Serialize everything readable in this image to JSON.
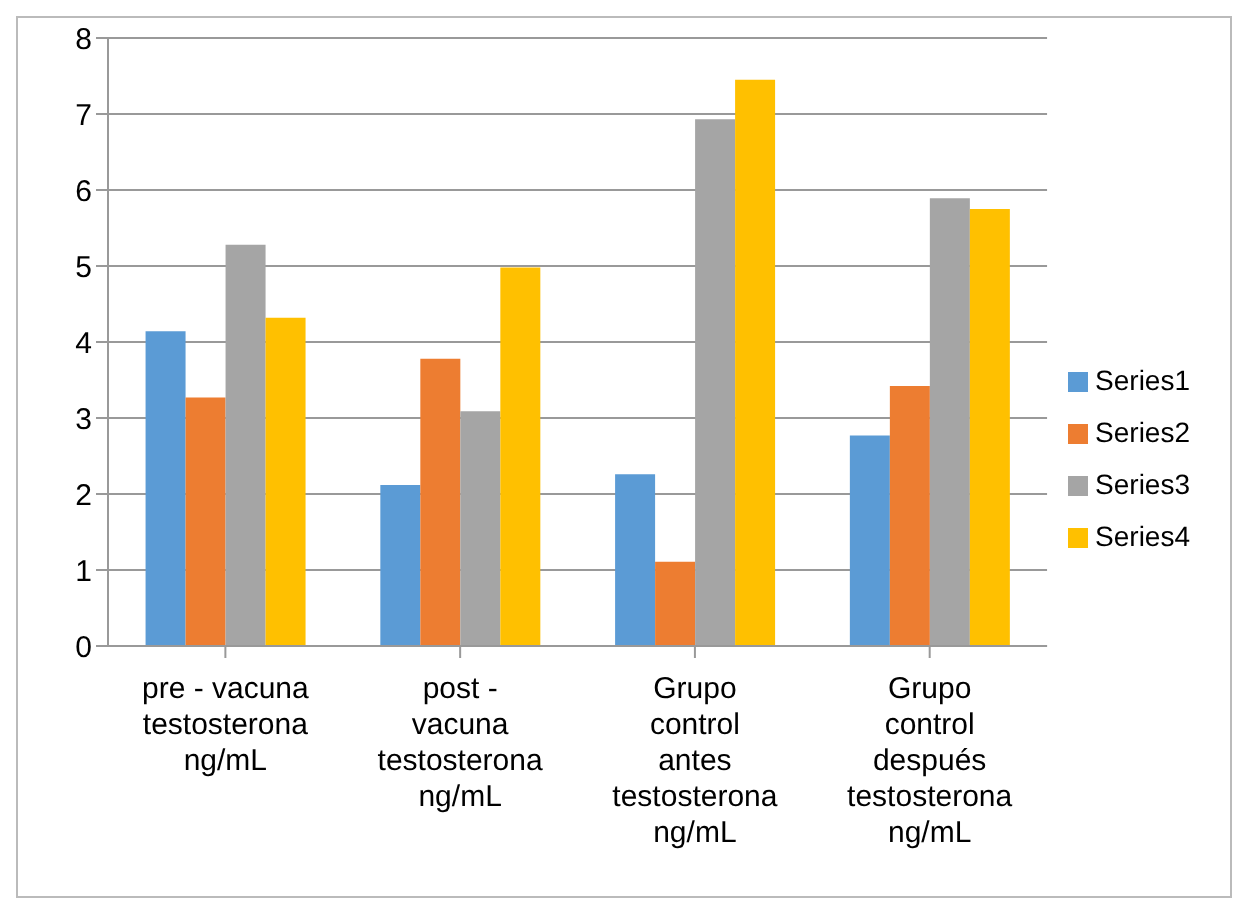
{
  "chart_data": {
    "type": "bar",
    "categories": [
      "pre - vacuna testosterona ng/mL",
      "post - vacuna testosterona ng/mL",
      "Grupo control antes testosterona ng/mL",
      "Grupo control después testosterona ng/mL"
    ],
    "series": [
      {
        "name": "Series1",
        "color": "#5b9bd5",
        "values": [
          4.14,
          2.12,
          2.26,
          2.77
        ]
      },
      {
        "name": "Series2",
        "color": "#ed7d31",
        "values": [
          3.27,
          3.78,
          1.11,
          3.42
        ]
      },
      {
        "name": "Series3",
        "color": "#a5a5a5",
        "values": [
          5.28,
          3.09,
          6.93,
          5.89
        ]
      },
      {
        "name": "Series4",
        "color": "#ffc000",
        "values": [
          4.32,
          4.98,
          7.45,
          5.75
        ]
      }
    ],
    "ylim": [
      0,
      8
    ],
    "yticks": [
      0,
      1,
      2,
      3,
      4,
      5,
      6,
      7,
      8
    ],
    "grid": "y",
    "legend": "right"
  }
}
